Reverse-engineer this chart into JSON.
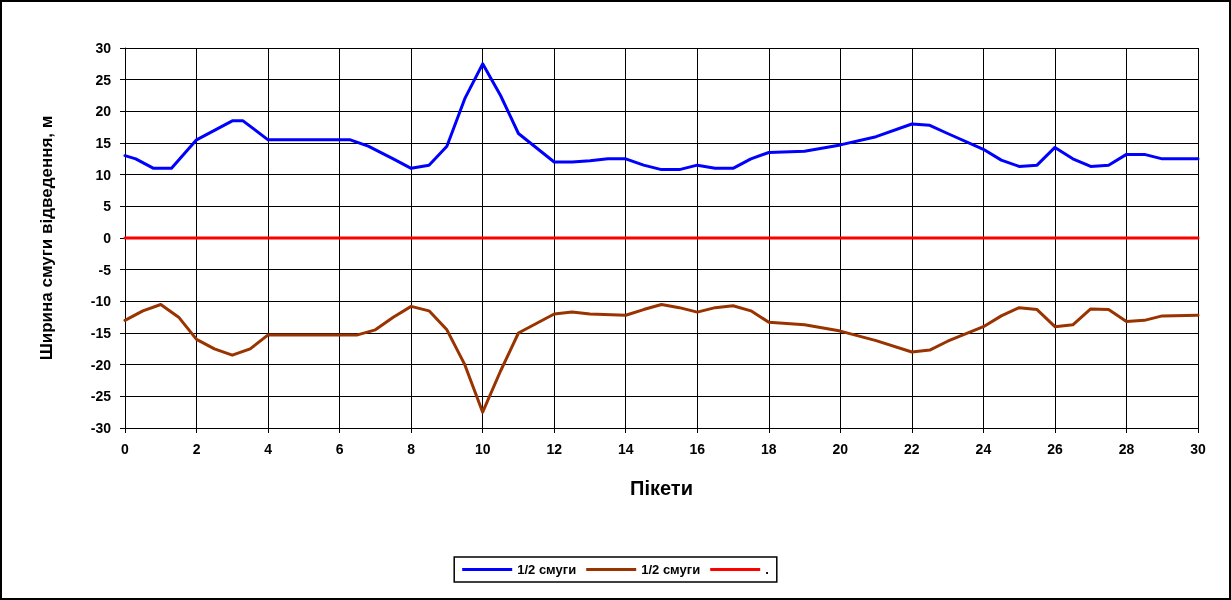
{
  "chart_data": {
    "type": "line",
    "xlabel": "Пікети",
    "ylabel": "Ширина смуги відведення, м",
    "xlim": [
      0,
      30
    ],
    "xticks": [
      0,
      2,
      4,
      6,
      8,
      10,
      12,
      14,
      16,
      18,
      20,
      22,
      24,
      26,
      28,
      30
    ],
    "ylim": [
      -30,
      30
    ],
    "yticks": [
      -30,
      -25,
      -20,
      -15,
      -10,
      -5,
      0,
      5,
      10,
      15,
      20,
      25,
      30
    ],
    "grid": true,
    "legend": "bottom",
    "marker": "none",
    "line_style": "solid",
    "series": [
      {
        "name": "1/2 смуги",
        "color": "#0000ff",
        "x": [
          0,
          0.3,
          0.8,
          1.3,
          2,
          2.5,
          3,
          3.3,
          4,
          6.3,
          6.8,
          7.5,
          8,
          8.5,
          9,
          9.5,
          10,
          10.5,
          11,
          12,
          12.5,
          13,
          13.5,
          14,
          14.5,
          15,
          15.5,
          16,
          16.5,
          17,
          17.5,
          18,
          19,
          20,
          21,
          22,
          22.5,
          23,
          24,
          24.5,
          25,
          25.5,
          26,
          26.5,
          27,
          27.5,
          28,
          28.5,
          29,
          30
        ],
        "values": [
          13,
          12.5,
          11,
          11,
          15.5,
          17,
          18.5,
          18.5,
          15.5,
          15.5,
          14.5,
          12.5,
          11,
          11.5,
          14.5,
          22,
          27.5,
          22.5,
          16.5,
          12,
          12,
          12.2,
          12.5,
          12.5,
          11.5,
          10.8,
          10.8,
          11.5,
          11,
          11,
          12.5,
          13.5,
          13.7,
          14.7,
          16,
          18,
          17.8,
          16.5,
          14,
          12.3,
          11.3,
          11.5,
          14.3,
          12.5,
          11.3,
          11.5,
          13.2,
          13.2,
          12.5,
          12.5
        ]
      },
      {
        "name": "1/2 смуги",
        "color": "#993300",
        "x": [
          0,
          0.5,
          1,
          1.5,
          2,
          2.5,
          3,
          3.5,
          4,
          6.5,
          7,
          7.5,
          8,
          8.5,
          9,
          9.5,
          10,
          10.5,
          11,
          12,
          12.5,
          13,
          14,
          14.5,
          15,
          15.5,
          16,
          16.5,
          17,
          17.5,
          18,
          19,
          20,
          21,
          22,
          22.5,
          23,
          24,
          24.5,
          25,
          25.5,
          26,
          26.5,
          27,
          27.5,
          28,
          28.5,
          29,
          30
        ],
        "values": [
          -13,
          -11.5,
          -10.5,
          -12.5,
          -16,
          -17.5,
          -18.5,
          -17.5,
          -15.3,
          -15.3,
          -14.5,
          -12.5,
          -10.8,
          -11.5,
          -14.5,
          -20,
          -27.5,
          -21,
          -15,
          -12,
          -11.7,
          -12,
          -12.2,
          -11.3,
          -10.5,
          -11,
          -11.7,
          -11,
          -10.7,
          -11.5,
          -13.3,
          -13.7,
          -14.7,
          -16.2,
          -18,
          -17.7,
          -16.3,
          -14,
          -12.3,
          -11,
          -11.3,
          -14,
          -13.7,
          -11.2,
          -11.3,
          -13.2,
          -13,
          -12.3,
          -12.2
        ]
      },
      {
        "name": ".",
        "color": "#ff0000",
        "x": [
          0,
          30
        ],
        "values": [
          0,
          0
        ]
      }
    ]
  }
}
